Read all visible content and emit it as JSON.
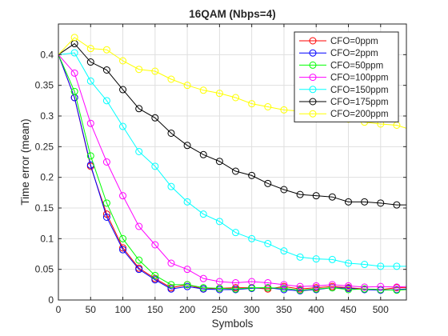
{
  "chart_data": {
    "type": "line",
    "title": "16QAM (Nbps=4)",
    "xlabel": "Symbols",
    "ylabel": "Time error (mean)",
    "xlim": [
      0,
      540
    ],
    "ylim": [
      0,
      0.45
    ],
    "xticks": [
      0,
      50,
      100,
      150,
      200,
      250,
      300,
      350,
      400,
      450,
      500
    ],
    "xtick_labels": [
      "0",
      "50",
      "100",
      "150",
      "200",
      "250",
      "300",
      "350",
      "400",
      "450",
      "500"
    ],
    "yticks": [
      0,
      0.05,
      0.1,
      0.15,
      0.2,
      0.25,
      0.3,
      0.35,
      0.4
    ],
    "ytick_labels": [
      "0",
      "0.05",
      "0.1",
      "0.15",
      "0.2",
      "0.25",
      "0.3",
      "0.35",
      "0.4"
    ],
    "grid": true,
    "legend_position": "top-right",
    "marker": "circle",
    "x": [
      0,
      25,
      50,
      75,
      100,
      125,
      150,
      175,
      200,
      225,
      250,
      275,
      300,
      325,
      350,
      375,
      400,
      425,
      450,
      475,
      500,
      525,
      540
    ],
    "series": [
      {
        "name": "CFO=0ppm",
        "color": "#ff0000",
        "values": [
          0.4,
          0.33,
          0.218,
          0.14,
          0.085,
          0.052,
          0.035,
          0.02,
          0.025,
          0.018,
          0.019,
          0.02,
          0.02,
          0.018,
          0.022,
          0.018,
          0.02,
          0.022,
          0.02,
          0.018,
          0.017,
          0.02,
          0.02
        ]
      },
      {
        "name": "CFO=2ppm",
        "color": "#0000ff",
        "values": [
          0.4,
          0.33,
          0.22,
          0.135,
          0.082,
          0.05,
          0.033,
          0.018,
          0.022,
          0.018,
          0.017,
          0.017,
          0.019,
          0.02,
          0.017,
          0.015,
          0.017,
          0.02,
          0.019,
          0.017,
          0.016,
          0.017,
          0.018
        ]
      },
      {
        "name": "CFO=50ppm",
        "color": "#00ff00",
        "values": [
          0.4,
          0.34,
          0.235,
          0.158,
          0.1,
          0.065,
          0.04,
          0.025,
          0.025,
          0.02,
          0.019,
          0.018,
          0.02,
          0.02,
          0.019,
          0.016,
          0.018,
          0.02,
          0.017,
          0.018,
          0.017,
          0.016,
          0.017
        ]
      },
      {
        "name": "CFO=100ppm",
        "color": "#ff00ff",
        "values": [
          0.4,
          0.37,
          0.288,
          0.225,
          0.17,
          0.12,
          0.09,
          0.06,
          0.05,
          0.035,
          0.03,
          0.028,
          0.03,
          0.028,
          0.025,
          0.022,
          0.023,
          0.025,
          0.023,
          0.021,
          0.022,
          0.021,
          0.022
        ]
      },
      {
        "name": "CFO=150ppm",
        "color": "#00ffff",
        "values": [
          0.4,
          0.403,
          0.357,
          0.325,
          0.283,
          0.242,
          0.218,
          0.185,
          0.16,
          0.14,
          0.128,
          0.11,
          0.1,
          0.092,
          0.08,
          0.07,
          0.067,
          0.066,
          0.06,
          0.058,
          0.055,
          0.055,
          0.055
        ]
      },
      {
        "name": "CFO=175ppm",
        "color": "#000000",
        "values": [
          0.4,
          0.418,
          0.388,
          0.375,
          0.343,
          0.312,
          0.297,
          0.272,
          0.252,
          0.237,
          0.226,
          0.21,
          0.203,
          0.19,
          0.18,
          0.172,
          0.17,
          0.168,
          0.16,
          0.16,
          0.158,
          0.155,
          0.155
        ]
      },
      {
        "name": "CFO=200ppm",
        "color": "#ffff00",
        "values": [
          0.4,
          0.428,
          0.41,
          0.408,
          0.39,
          0.376,
          0.373,
          0.36,
          0.35,
          0.342,
          0.337,
          0.33,
          0.32,
          0.315,
          0.31,
          0.308,
          0.3,
          0.3,
          0.295,
          0.29,
          0.287,
          0.285,
          0.28
        ]
      }
    ]
  }
}
